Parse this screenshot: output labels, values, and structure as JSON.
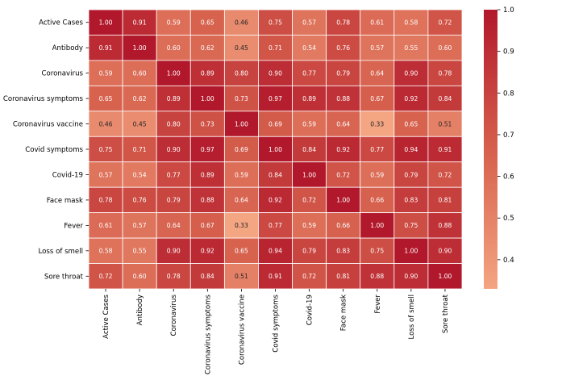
{
  "chart_data": {
    "type": "heatmap",
    "title": "",
    "xlabel": "",
    "ylabel": "",
    "labels": [
      "Active Cases",
      "Antibody",
      "Coronavirus",
      "Coronavirus symptoms",
      "Coronavirus vaccine",
      "Covid symptoms",
      "Covid-19",
      "Face mask",
      "Fever",
      "Loss of smell",
      "Sore throat"
    ],
    "matrix": [
      [
        1.0,
        0.91,
        0.59,
        0.65,
        0.46,
        0.75,
        0.57,
        0.78,
        0.61,
        0.58,
        0.72
      ],
      [
        0.91,
        1.0,
        0.6,
        0.62,
        0.45,
        0.71,
        0.54,
        0.76,
        0.57,
        0.55,
        0.6
      ],
      [
        0.59,
        0.6,
        1.0,
        0.89,
        0.8,
        0.9,
        0.77,
        0.79,
        0.64,
        0.9,
        0.78
      ],
      [
        0.65,
        0.62,
        0.89,
        1.0,
        0.73,
        0.97,
        0.89,
        0.88,
        0.67,
        0.92,
        0.84
      ],
      [
        0.46,
        0.45,
        0.8,
        0.73,
        1.0,
        0.69,
        0.59,
        0.64,
        0.33,
        0.65,
        0.51
      ],
      [
        0.75,
        0.71,
        0.9,
        0.97,
        0.69,
        1.0,
        0.84,
        0.92,
        0.77,
        0.94,
        0.91
      ],
      [
        0.57,
        0.54,
        0.77,
        0.89,
        0.59,
        0.84,
        1.0,
        0.72,
        0.59,
        0.79,
        0.72
      ],
      [
        0.78,
        0.76,
        0.79,
        0.88,
        0.64,
        0.92,
        0.72,
        1.0,
        0.66,
        0.83,
        0.81
      ],
      [
        0.61,
        0.57,
        0.64,
        0.67,
        0.33,
        0.77,
        0.59,
        0.66,
        1.0,
        0.75,
        0.88
      ],
      [
        0.58,
        0.55,
        0.9,
        0.92,
        0.65,
        0.94,
        0.79,
        0.83,
        0.75,
        1.0,
        0.9
      ],
      [
        0.72,
        0.6,
        0.78,
        0.84,
        0.51,
        0.91,
        0.72,
        0.81,
        0.88,
        0.9,
        1.0
      ]
    ],
    "value_format": "2dp",
    "colorbar": {
      "vmin": 0.33,
      "vmax": 1.0,
      "ticks": [
        "0.4",
        "0.5",
        "0.6",
        "0.7",
        "0.8",
        "0.9",
        "1.0"
      ],
      "tick_values": [
        0.4,
        0.5,
        0.6,
        0.7,
        0.8,
        0.9,
        1.0
      ],
      "colors": [
        "#f4a582",
        "#d6604d",
        "#b2182b"
      ]
    }
  }
}
